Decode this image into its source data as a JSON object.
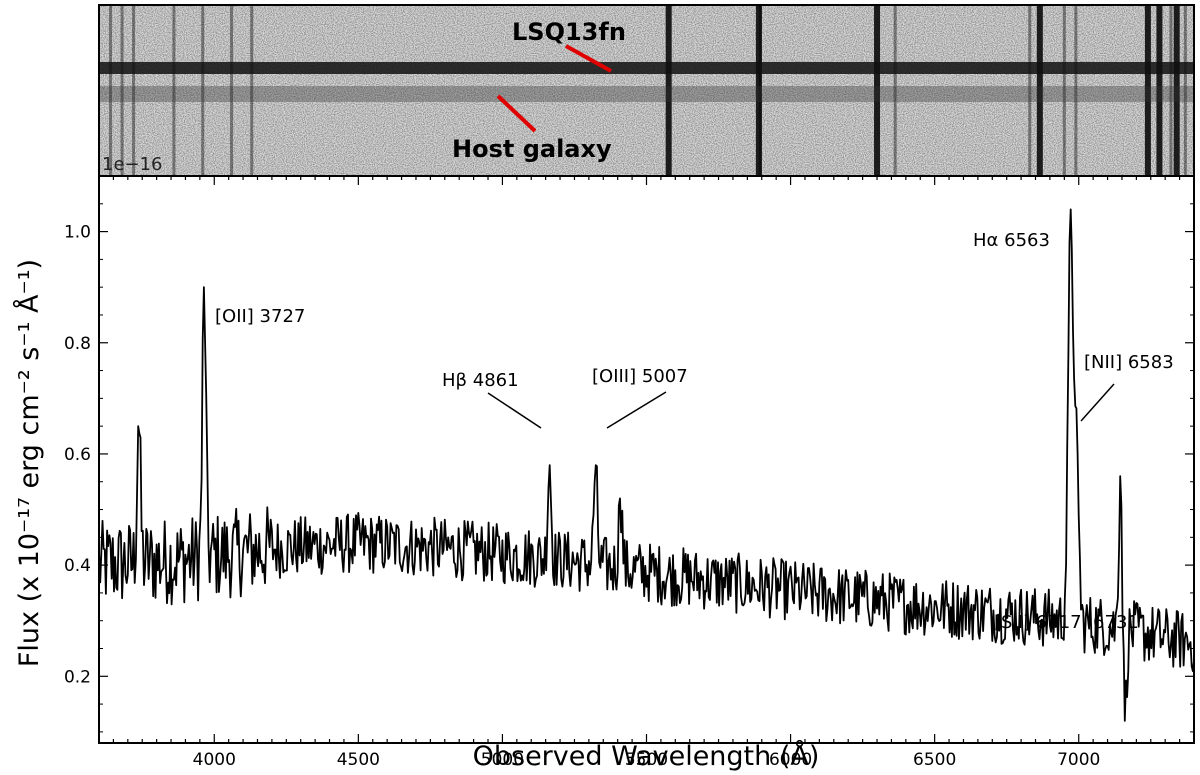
{
  "chart_data": [
    {
      "type": "image",
      "panel": "2D spectrum",
      "labels": [
        {
          "text": "LSQ13fn",
          "arrow_color": "#e00000"
        },
        {
          "text": "Host galaxy",
          "arrow_color": "#e00000"
        }
      ],
      "offset_text": "1e−16",
      "sky_lines": [
        3640,
        3680,
        3720,
        3860,
        3960,
        4060,
        4130,
        5577,
        5890,
        5895,
        6300,
        6363,
        6830,
        6865,
        6950,
        6990,
        7240,
        7280,
        7320,
        7340,
        7370
      ]
    },
    {
      "type": "line",
      "xlabel": "Observed Wavelength (Å)",
      "ylabel": "Flux (x 10⁻¹⁷ erg cm⁻² s⁻¹ Å⁻¹)",
      "xlim": [
        3600,
        7400
      ],
      "ylim": [
        0.08,
        1.1
      ],
      "xticks": [
        4000,
        4500,
        5000,
        5500,
        6000,
        6500,
        7000
      ],
      "yticks": [
        0.2,
        0.4,
        0.6,
        0.8,
        1.0
      ],
      "xtick_labels": [
        "4000",
        "4500",
        "5000",
        "5500",
        "6000",
        "6500",
        "7000"
      ],
      "ytick_labels": [
        "0.2",
        "0.4",
        "0.6",
        "0.8",
        "1.0"
      ],
      "grid": false,
      "line_color": "#000000",
      "continuum": [
        [
          3600,
          0.4
        ],
        [
          3900,
          0.41
        ],
        [
          4200,
          0.43
        ],
        [
          4500,
          0.44
        ],
        [
          4800,
          0.43
        ],
        [
          5200,
          0.41
        ],
        [
          5600,
          0.38
        ],
        [
          6000,
          0.355
        ],
        [
          6400,
          0.33
        ],
        [
          6800,
          0.31
        ],
        [
          7100,
          0.29
        ],
        [
          7400,
          0.26
        ]
      ],
      "features": [
        {
          "x": 3738,
          "y": 0.65
        },
        {
          "x": 3965,
          "y": 0.9
        },
        {
          "x": 5163,
          "y": 0.58
        },
        {
          "x": 5323,
          "y": 0.58
        },
        {
          "x": 5410,
          "y": 0.52
        },
        {
          "x": 6973,
          "y": 1.04
        },
        {
          "x": 6995,
          "y": 0.6
        },
        {
          "x": 7145,
          "y": 0.56
        },
        {
          "x": 7160,
          "y": 0.12
        }
      ],
      "annotations": [
        {
          "text": "[OII] 3727"
        },
        {
          "text": "Hβ 4861"
        },
        {
          "text": "[OIII] 5007"
        },
        {
          "text": "Hα 6563"
        },
        {
          "text": "[NII] 6583"
        },
        {
          "text": "[SII] 6717, 6731"
        }
      ]
    }
  ]
}
